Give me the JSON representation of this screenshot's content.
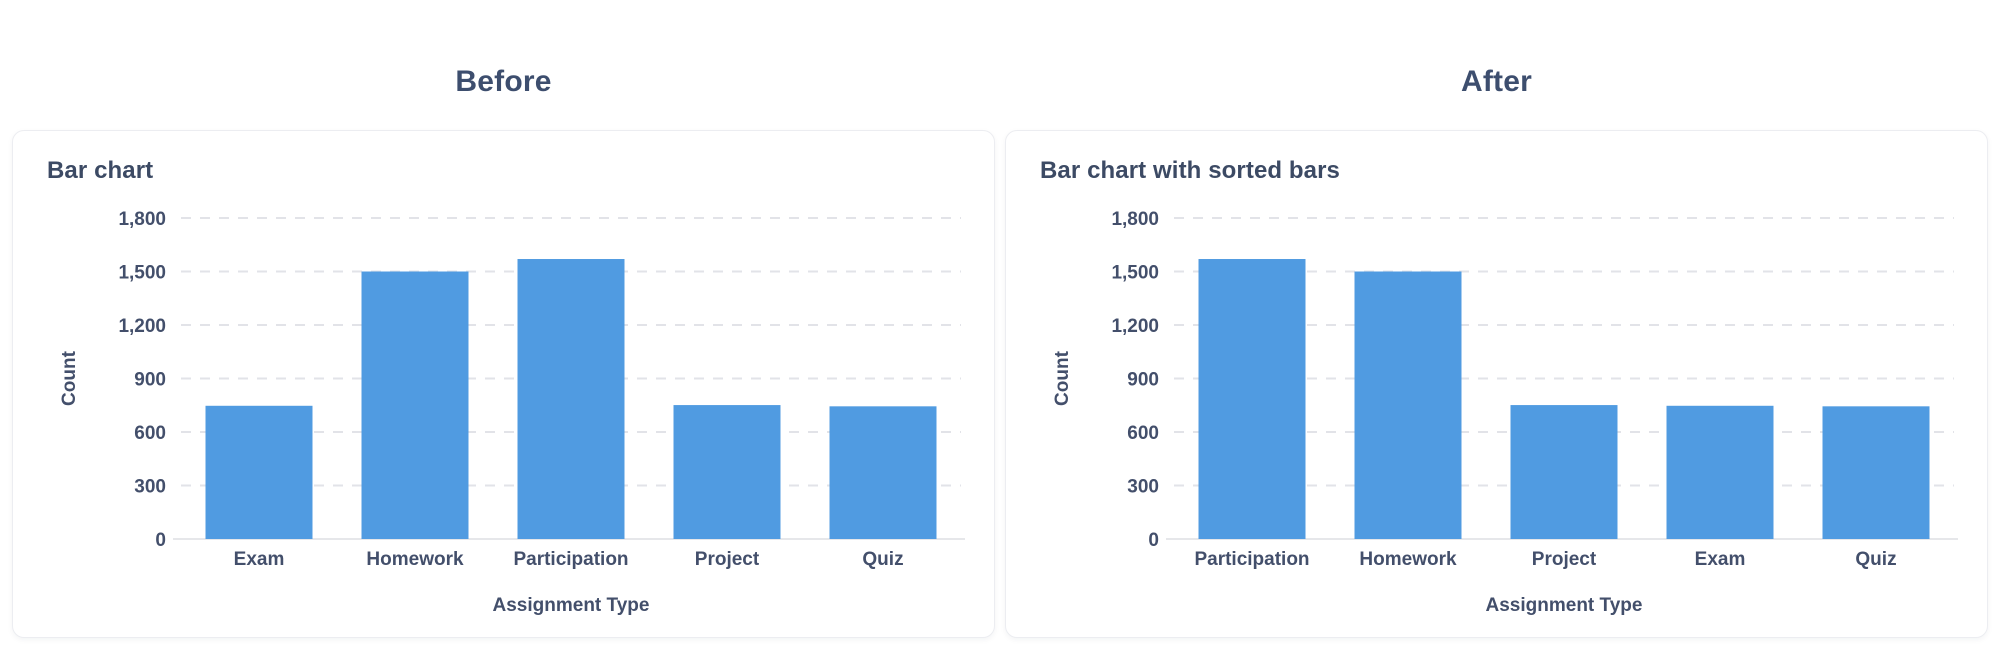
{
  "panels": [
    {
      "title": "Before"
    },
    {
      "title": "After"
    }
  ],
  "colors": {
    "bar": "#509be1",
    "gridline": "#e2e3e8",
    "axis_domain": "#e6e7ea",
    "text": "#434f6b",
    "title_text": "#3c4a64",
    "panel_title_text": "#3d4e6e",
    "card_background": "#ffffff",
    "card_border": "#ecedf1",
    "page_background": "#ffffff"
  },
  "chart_data": [
    {
      "type": "bar",
      "title": "Bar chart",
      "categories": [
        "Exam",
        "Homework",
        "Participation",
        "Project",
        "Quiz"
      ],
      "values": [
        747,
        1500,
        1570,
        751,
        744
      ],
      "xlabel": "Assignment Type",
      "ylabel": "Count",
      "ylim": [
        0,
        1800
      ],
      "ytick_step": 300,
      "ytick_labels": [
        "0",
        "300",
        "600",
        "900",
        "1,200",
        "1,500",
        "1,800"
      ],
      "grid": true,
      "grid_style": "dashed",
      "legend": false
    },
    {
      "type": "bar",
      "title": "Bar chart with sorted bars",
      "categories": [
        "Participation",
        "Homework",
        "Project",
        "Exam",
        "Quiz"
      ],
      "values": [
        1570,
        1500,
        751,
        747,
        744
      ],
      "xlabel": "Assignment Type",
      "ylabel": "Count",
      "ylim": [
        0,
        1800
      ],
      "ytick_step": 300,
      "ytick_labels": [
        "0",
        "300",
        "600",
        "900",
        "1,200",
        "1,500",
        "1,800"
      ],
      "grid": true,
      "grid_style": "dashed",
      "legend": false
    }
  ]
}
